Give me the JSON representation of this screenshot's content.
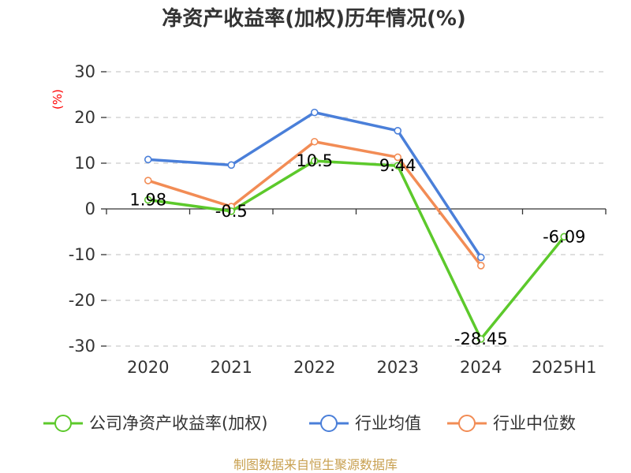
{
  "chart_data": {
    "type": "line",
    "title": "净资产收益率(加权)历年情况(%)",
    "xlabel": "",
    "ylabel": "(%)",
    "categories": [
      "2020",
      "2021",
      "2022",
      "2023",
      "2024",
      "2025H1"
    ],
    "ylim": [
      -30,
      30
    ],
    "yticks": [
      -30,
      -20,
      -10,
      0,
      10,
      20,
      30
    ],
    "grid": true,
    "legend_position": "bottom",
    "series": [
      {
        "name": "公司净资产收益率(加权)",
        "color": "#5cc92b",
        "values": [
          1.98,
          -0.5,
          10.5,
          9.44,
          -28.45,
          -6.09
        ],
        "labels": [
          "1.98",
          "-0.5",
          "10.5",
          "9.44",
          "-28.45",
          "-6.09"
        ]
      },
      {
        "name": "行业均值",
        "color": "#4a7fd9",
        "values": [
          10.8,
          9.6,
          21.1,
          17.1,
          -10.6,
          null
        ]
      },
      {
        "name": "行业中位数",
        "color": "#f28c55",
        "values": [
          6.2,
          0.5,
          14.7,
          11.3,
          -12.4,
          null
        ]
      }
    ]
  },
  "source_text": "制图数据来自恒生聚源数据库"
}
